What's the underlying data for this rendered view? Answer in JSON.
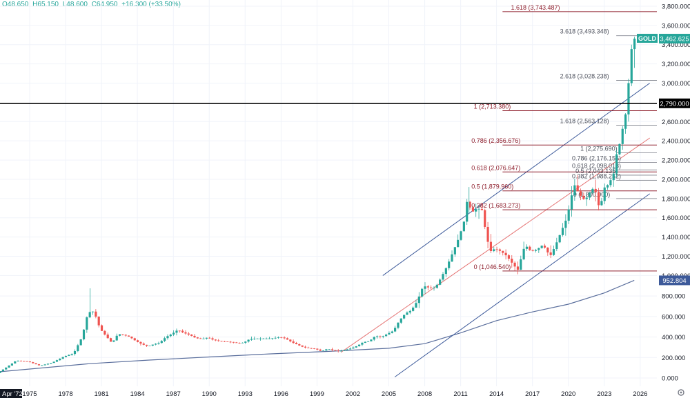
{
  "ohlc": {
    "open": "O48.650",
    "high": "H65.150",
    "low": "L48.600",
    "close": "C64.950",
    "change": "+16.300 (+33.50%)"
  },
  "colors": {
    "up": "#26a69a",
    "down": "#ef5350",
    "fib": "#8d1c2a",
    "channel": "#3d5a9a",
    "ma": "#5a6e9c",
    "hline": "#000000",
    "axis_text": "#131722"
  },
  "chart_data": {
    "type": "candlestick",
    "x_axis": {
      "start_label": "Apr '72",
      "ticks": [
        {
          "label": "1975",
          "year": 1975
        },
        {
          "label": "1978",
          "year": 1978
        },
        {
          "label": "1981",
          "year": 1981
        },
        {
          "label": "1984",
          "year": 1984
        },
        {
          "label": "1987",
          "year": 1987
        },
        {
          "label": "1990",
          "year": 1990
        },
        {
          "label": "1993",
          "year": 1993
        },
        {
          "label": "1996",
          "year": 1996
        },
        {
          "label": "1999",
          "year": 1999
        },
        {
          "label": "2002",
          "year": 2002
        },
        {
          "label": "2005",
          "year": 2005
        },
        {
          "label": "2008",
          "year": 2008
        },
        {
          "label": "2011",
          "year": 2011
        },
        {
          "label": "2014",
          "year": 2014
        },
        {
          "label": "2017",
          "year": 2017
        },
        {
          "label": "2020",
          "year": 2020
        },
        {
          "label": "2023",
          "year": 2023
        },
        {
          "label": "2026",
          "year": 2026
        }
      ]
    },
    "y_axis": {
      "scale": "log",
      "ticks": [
        {
          "label": "3,800.000",
          "value": 3800
        },
        {
          "label": "3,600.000",
          "value": 3600
        },
        {
          "label": "3,400.000",
          "value": 3400
        },
        {
          "label": "3,200.000",
          "value": 3200
        },
        {
          "label": "3,000.000",
          "value": 3000
        },
        {
          "label": "2,600.000",
          "value": 2600
        },
        {
          "label": "2,400.000",
          "value": 2400
        },
        {
          "label": "2,200.000",
          "value": 2200
        },
        {
          "label": "2,000.000",
          "value": 2000
        },
        {
          "label": "1,800.000",
          "value": 1800
        },
        {
          "label": "1,600.000",
          "value": 1600
        },
        {
          "label": "1,400.000",
          "value": 1400
        },
        {
          "label": "1,200.000",
          "value": 1200
        },
        {
          "label": "1,000.000",
          "value": 1000
        },
        {
          "label": "800.000",
          "value": 800
        },
        {
          "label": "600.000",
          "value": 600
        },
        {
          "label": "400.000",
          "value": 400
        },
        {
          "label": "200.000",
          "value": 200
        },
        {
          "label": "0.000",
          "value": 0
        }
      ]
    },
    "badges": [
      {
        "label": "GOLD",
        "value": "3,462.625",
        "color": "#26a69a",
        "price": 3462.6
      },
      {
        "label": "",
        "value": "2,790.000",
        "color": "#000000",
        "price": 2790
      },
      {
        "label": "",
        "value": "952.804",
        "color": "#3d5a9a",
        "price": 952.8
      }
    ],
    "horizontal_line": {
      "price": 2790
    },
    "fib_levels": [
      {
        "label": "1.618 (3,743.487)",
        "price": 3743.487,
        "label_year": 2015.2,
        "from_year": 2014.5
      },
      {
        "label": "1 (2,713.380)",
        "price": 2713.38,
        "label_year": 2012.1,
        "from_year": 2014.5
      },
      {
        "label": "0.786 (2,356.676)",
        "price": 2356.676,
        "label_year": 2011.9,
        "from_year": 2014.5
      },
      {
        "label": "0.618 (2,076.647)",
        "price": 2076.647,
        "label_year": 2011.9,
        "from_year": 2014.5
      },
      {
        "label": "0.5 (1,879.960)",
        "price": 1879.96,
        "label_year": 2011.9,
        "from_year": 2014.5
      },
      {
        "label": "0.382 (1,683.273)",
        "price": 1683.273,
        "label_year": 2011.9,
        "from_year": 2014.5
      },
      {
        "label": "0 (1,046.540)",
        "price": 1046.54,
        "label_year": 2012.1,
        "from_year": 2014.5
      }
    ],
    "fib_ext_levels": [
      {
        "label": "3.618 (3,493.348)",
        "price": 3493.348,
        "label_year": 2019.3,
        "from_year": 2024.0
      },
      {
        "label": "2.618 (3,028.238)",
        "price": 3028.238,
        "label_year": 2019.3,
        "from_year": 2024.0
      },
      {
        "label": "1.618 (2,563.128)",
        "price": 2563.128,
        "label_year": 2019.3,
        "from_year": 2024.0
      },
      {
        "label": "1 (2,275.690)",
        "price": 2275.69,
        "label_year": 2021.0,
        "from_year": 2024.0
      },
      {
        "label": "0.786 (2,176.156)",
        "price": 2176.156,
        "label_year": 2020.3,
        "from_year": 2024.0
      },
      {
        "label": "0.618 (2,098.018)",
        "price": 2098.018,
        "label_year": 2020.3,
        "from_year": 2024.0
      },
      {
        "label": "0.5 (2,043.135)",
        "price": 2043.135,
        "label_year": 2020.6,
        "from_year": 2024.0
      },
      {
        "label": "0.382 (1,988.252)",
        "price": 1988.252,
        "label_year": 2020.3,
        "from_year": 2024.0
      },
      {
        "label": "0 (1,800.000)",
        "price": 1800,
        "label_year": 2020.4,
        "from_year": 2024.0
      }
    ],
    "trend_lines": [
      {
        "role": "channel-upper",
        "from": {
          "year": 2004.5,
          "price": 1000
        },
        "to": {
          "year": 2026.8,
          "price": 3000
        }
      },
      {
        "role": "channel-lower",
        "from": {
          "year": 2005.5,
          "price": 10
        },
        "to": {
          "year": 2026.8,
          "price": 1850
        }
      },
      {
        "role": "channel-mid",
        "from": {
          "year": 2001.0,
          "price": 250
        },
        "to": {
          "year": 2026.8,
          "price": 2430
        }
      }
    ],
    "moving_average": [
      {
        "year": 1972.4,
        "price": 60
      },
      {
        "year": 1980.0,
        "price": 140
      },
      {
        "year": 1985.0,
        "price": 175
      },
      {
        "year": 1990.0,
        "price": 205
      },
      {
        "year": 1995.0,
        "price": 235
      },
      {
        "year": 2000.0,
        "price": 260
      },
      {
        "year": 2005.0,
        "price": 290
      },
      {
        "year": 2008.0,
        "price": 335
      },
      {
        "year": 2011.0,
        "price": 440
      },
      {
        "year": 2014.0,
        "price": 560
      },
      {
        "year": 2017.0,
        "price": 645
      },
      {
        "year": 2020.0,
        "price": 720
      },
      {
        "year": 2023.0,
        "price": 830
      },
      {
        "year": 2025.5,
        "price": 952.8
      }
    ],
    "price_path": [
      [
        1972.4,
        48.6
      ],
      [
        1973.0,
        90
      ],
      [
        1974.0,
        170
      ],
      [
        1975.0,
        160
      ],
      [
        1976.0,
        120
      ],
      [
        1977.0,
        150
      ],
      [
        1978.0,
        210
      ],
      [
        1978.8,
        240
      ],
      [
        1979.5,
        400
      ],
      [
        1980.0,
        640
      ],
      [
        1980.5,
        650
      ],
      [
        1981.0,
        480
      ],
      [
        1981.5,
        410
      ],
      [
        1982.0,
        340
      ],
      [
        1982.5,
        430
      ],
      [
        1983.0,
        420
      ],
      [
        1983.5,
        400
      ],
      [
        1984.0,
        360
      ],
      [
        1984.5,
        330
      ],
      [
        1985.0,
        310
      ],
      [
        1985.5,
        330
      ],
      [
        1986.0,
        345
      ],
      [
        1986.5,
        400
      ],
      [
        1987.0,
        430
      ],
      [
        1987.5,
        470
      ],
      [
        1988.0,
        440
      ],
      [
        1988.5,
        420
      ],
      [
        1989.0,
        390
      ],
      [
        1989.5,
        380
      ],
      [
        1990.0,
        395
      ],
      [
        1990.5,
        370
      ],
      [
        1991.0,
        360
      ],
      [
        1991.5,
        355
      ],
      [
        1992.0,
        350
      ],
      [
        1992.5,
        340
      ],
      [
        1993.0,
        345
      ],
      [
        1993.5,
        380
      ],
      [
        1994.0,
        385
      ],
      [
        1994.5,
        385
      ],
      [
        1995.0,
        385
      ],
      [
        1995.5,
        388
      ],
      [
        1996.0,
        400
      ],
      [
        1996.5,
        385
      ],
      [
        1997.0,
        350
      ],
      [
        1997.5,
        325
      ],
      [
        1998.0,
        300
      ],
      [
        1998.5,
        290
      ],
      [
        1999.0,
        285
      ],
      [
        1999.5,
        260
      ],
      [
        2000.0,
        285
      ],
      [
        2000.5,
        270
      ],
      [
        2001.0,
        260
      ],
      [
        2001.5,
        275
      ],
      [
        2002.0,
        290
      ],
      [
        2002.5,
        315
      ],
      [
        2003.0,
        350
      ],
      [
        2003.5,
        360
      ],
      [
        2004.0,
        410
      ],
      [
        2004.5,
        400
      ],
      [
        2005.0,
        430
      ],
      [
        2005.5,
        460
      ],
      [
        2006.0,
        560
      ],
      [
        2006.5,
        630
      ],
      [
        2007.0,
        660
      ],
      [
        2007.5,
        750
      ],
      [
        2008.0,
        900
      ],
      [
        2008.5,
        880
      ],
      [
        2009.0,
        880
      ],
      [
        2009.5,
        980
      ],
      [
        2010.0,
        1100
      ],
      [
        2010.5,
        1250
      ],
      [
        2011.0,
        1400
      ],
      [
        2011.5,
        1600
      ],
      [
        2011.7,
        1820
      ],
      [
        2012.0,
        1650
      ],
      [
        2012.5,
        1700
      ],
      [
        2012.9,
        1680
      ],
      [
        2013.3,
        1400
      ],
      [
        2013.6,
        1250
      ],
      [
        2014.0,
        1280
      ],
      [
        2014.5,
        1250
      ],
      [
        2015.0,
        1200
      ],
      [
        2015.6,
        1100
      ],
      [
        2015.9,
        1060
      ],
      [
        2016.5,
        1320
      ],
      [
        2017.0,
        1250
      ],
      [
        2017.5,
        1270
      ],
      [
        2018.0,
        1320
      ],
      [
        2018.6,
        1200
      ],
      [
        2019.0,
        1300
      ],
      [
        2019.5,
        1450
      ],
      [
        2020.0,
        1600
      ],
      [
        2020.6,
        1950
      ],
      [
        2021.0,
        1850
      ],
      [
        2021.5,
        1780
      ],
      [
        2022.0,
        1880
      ],
      [
        2022.3,
        1920
      ],
      [
        2022.8,
        1650
      ],
      [
        2023.0,
        1900
      ],
      [
        2023.5,
        1950
      ],
      [
        2023.9,
        2060
      ],
      [
        2024.2,
        2300
      ],
      [
        2024.5,
        2400
      ],
      [
        2024.8,
        2650
      ],
      [
        2025.0,
        2700
      ],
      [
        2025.3,
        3300
      ],
      [
        2025.6,
        3462.6
      ]
    ]
  }
}
